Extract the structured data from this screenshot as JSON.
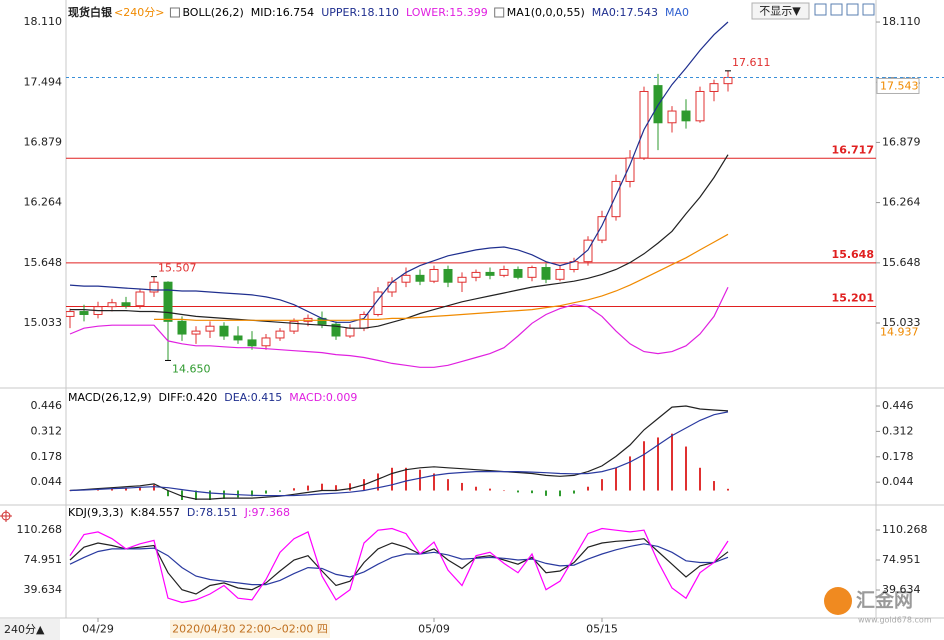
{
  "toolbar": {
    "hide_button": "不显示▼"
  },
  "cursor_label": "2020/04/30 22:00～02:00 四",
  "period_button": "240分▲",
  "watermark": {
    "name": "汇金网",
    "url": "www.gold678.com"
  },
  "chart_data": [
    {
      "type": "candlestick",
      "title": "现货白银",
      "subtitle": "<240分>",
      "indicator_labels": [
        {
          "text": "BOLL(26,2)",
          "color": "#000000",
          "checkbox": true
        },
        {
          "text": "MID:16.754",
          "color": "#000000"
        },
        {
          "text": "UPPER:18.110",
          "color": "#1f2f8f"
        },
        {
          "text": "LOWER:15.399",
          "color": "#e020e0"
        },
        {
          "text": "MA1(0,0,0,55)",
          "color": "#000000",
          "checkbox": true
        },
        {
          "text": "MA0:17.543",
          "color": "#1f2f8f"
        },
        {
          "text": "MA0",
          "color": "#3060d0"
        }
      ],
      "categories": [
        null,
        null,
        "04/29",
        null,
        null,
        null,
        null,
        null,
        null,
        null,
        null,
        null,
        null,
        null,
        null,
        null,
        null,
        null,
        null,
        null,
        null,
        null,
        null,
        null,
        null,
        null,
        "05/09",
        null,
        null,
        null,
        null,
        null,
        null,
        null,
        null,
        null,
        null,
        null,
        "05/15",
        null,
        null,
        null,
        null,
        null,
        null,
        null,
        null,
        null
      ],
      "ohlc": {
        "open": [
          15.1,
          15.15,
          15.12,
          15.2,
          15.24,
          15.21,
          15.35,
          15.45,
          15.05,
          14.92,
          14.95,
          15.0,
          14.9,
          14.86,
          14.8,
          14.88,
          14.95,
          15.05,
          15.08,
          15.02,
          14.9,
          14.98,
          15.12,
          15.35,
          15.45,
          15.52,
          15.46,
          15.58,
          15.45,
          15.5,
          15.55,
          15.52,
          15.58,
          15.5,
          15.6,
          15.48,
          15.58,
          15.66,
          15.88,
          16.12,
          16.48,
          16.72,
          17.46,
          17.08,
          17.2,
          17.1,
          17.4,
          17.48
        ],
        "high": [
          15.18,
          15.22,
          15.25,
          15.28,
          15.3,
          15.38,
          15.507,
          15.46,
          15.1,
          15.0,
          15.05,
          15.04,
          15.0,
          14.95,
          14.92,
          14.98,
          15.08,
          15.12,
          15.15,
          15.05,
          15.02,
          15.15,
          15.4,
          15.5,
          15.6,
          15.58,
          15.62,
          15.62,
          15.55,
          15.58,
          15.6,
          15.62,
          15.61,
          15.62,
          15.64,
          15.62,
          15.7,
          15.92,
          16.18,
          16.55,
          16.8,
          17.45,
          17.58,
          17.25,
          17.32,
          17.45,
          17.52,
          17.611
        ],
        "low": [
          14.98,
          15.05,
          15.08,
          15.15,
          15.18,
          15.18,
          15.3,
          14.65,
          14.85,
          14.82,
          14.88,
          14.86,
          14.82,
          14.76,
          14.76,
          14.85,
          14.92,
          15.0,
          14.98,
          14.86,
          14.88,
          14.95,
          15.1,
          15.3,
          15.4,
          15.42,
          15.44,
          15.4,
          15.35,
          15.46,
          15.48,
          15.5,
          15.48,
          15.46,
          15.44,
          15.46,
          15.55,
          15.62,
          15.85,
          16.08,
          16.42,
          16.7,
          16.8,
          16.98,
          17.02,
          17.08,
          17.3,
          17.4
        ],
        "close": [
          15.15,
          15.12,
          15.2,
          15.24,
          15.21,
          15.35,
          15.45,
          15.05,
          14.92,
          14.95,
          15.0,
          14.9,
          14.86,
          14.8,
          14.88,
          14.95,
          15.05,
          15.08,
          15.02,
          14.9,
          14.98,
          15.12,
          15.35,
          15.45,
          15.52,
          15.46,
          15.58,
          15.45,
          15.5,
          15.55,
          15.52,
          15.58,
          15.5,
          15.6,
          15.48,
          15.58,
          15.66,
          15.88,
          16.12,
          16.48,
          16.72,
          17.4,
          17.08,
          17.2,
          17.1,
          17.4,
          17.48,
          17.543
        ],
        "up_color": "#e03030",
        "down_color": "#2e9a2e"
      },
      "lines": [
        {
          "color": "#1f2f8f",
          "values": [
            15.42,
            15.41,
            15.41,
            15.4,
            15.39,
            15.38,
            15.37,
            15.37,
            15.36,
            15.36,
            15.35,
            15.34,
            15.33,
            15.32,
            15.3,
            15.27,
            15.22,
            15.15,
            15.08,
            15.04,
            15.04,
            15.08,
            15.27,
            15.45,
            15.55,
            15.62,
            15.67,
            15.72,
            15.75,
            15.78,
            15.8,
            15.81,
            15.78,
            15.73,
            15.66,
            15.62,
            15.66,
            15.78,
            16.03,
            16.34,
            16.65,
            17.01,
            17.26,
            17.47,
            17.64,
            17.82,
            17.98,
            18.11
          ]
        },
        {
          "color": "#222222",
          "values": [
            15.17,
            15.17,
            15.16,
            15.16,
            15.16,
            15.15,
            15.15,
            15.14,
            15.12,
            15.1,
            15.09,
            15.08,
            15.07,
            15.06,
            15.05,
            15.04,
            15.03,
            15.02,
            15.01,
            15.0,
            14.98,
            14.98,
            15.0,
            15.04,
            15.08,
            15.13,
            15.17,
            15.21,
            15.25,
            15.28,
            15.31,
            15.34,
            15.37,
            15.4,
            15.42,
            15.44,
            15.46,
            15.49,
            15.53,
            15.58,
            15.65,
            15.74,
            15.85,
            15.97,
            16.15,
            16.32,
            16.52,
            16.754
          ]
        },
        {
          "color": "#e020e0",
          "values": [
            14.92,
            14.98,
            15.0,
            15.01,
            15.01,
            15.01,
            15.01,
            14.85,
            14.82,
            14.8,
            14.8,
            14.79,
            14.78,
            14.78,
            14.77,
            14.76,
            14.75,
            14.74,
            14.73,
            14.71,
            14.7,
            14.68,
            14.65,
            14.62,
            14.6,
            14.58,
            14.58,
            14.6,
            14.64,
            14.68,
            14.72,
            14.78,
            14.9,
            15.03,
            15.12,
            15.18,
            15.22,
            15.2,
            15.1,
            14.95,
            14.82,
            14.74,
            14.72,
            14.74,
            14.8,
            14.92,
            15.1,
            15.399
          ]
        },
        {
          "color": "#f08a00",
          "values": [
            null,
            null,
            null,
            null,
            null,
            null,
            15.07,
            15.07,
            15.07,
            15.06,
            15.06,
            15.06,
            15.06,
            15.06,
            15.06,
            15.06,
            15.06,
            15.06,
            15.06,
            15.06,
            15.06,
            15.07,
            15.07,
            15.08,
            15.08,
            15.09,
            15.1,
            15.11,
            15.12,
            15.13,
            15.14,
            15.15,
            15.16,
            15.17,
            15.19,
            15.21,
            15.24,
            15.27,
            15.31,
            15.36,
            15.42,
            15.49,
            15.56,
            15.63,
            15.7,
            15.78,
            15.86,
            15.94
          ]
        }
      ],
      "levels": [
        16.717,
        15.648,
        15.201
      ],
      "level_color": "#e02020",
      "reference_line": 17.543,
      "reference_color": "#3a8fd8",
      "ma_tag": 14.937,
      "ma_tag_color": "#f08a00",
      "annotations": [
        17.611,
        15.507,
        {
          "value": 14.65,
          "label": "14.650"
        }
      ],
      "ylim": [
        14.399,
        18.233
      ],
      "yticks": [
        15.033,
        15.648,
        16.264,
        16.879,
        17.494,
        {
          "value": 18.11,
          "label": "18.110"
        }
      ],
      "grid": false
    },
    {
      "type": "macd",
      "indicator_labels": [
        {
          "text": "MACD(26,12,9)",
          "color": "#000000"
        },
        {
          "text": "DIFF:0.420",
          "color": "#000000"
        },
        {
          "text": "DEA:0.415",
          "color": "#1f2f8f"
        },
        {
          "text": "MACD:0.009",
          "color": "#e020e0"
        }
      ],
      "lines": [
        {
          "color": "#222222",
          "values": [
            0.0,
            0.005,
            0.01,
            0.015,
            0.02,
            0.025,
            0.035,
            0.0,
            -0.03,
            -0.045,
            -0.045,
            -0.04,
            -0.04,
            -0.04,
            -0.035,
            -0.03,
            -0.02,
            -0.01,
            0.0,
            0.0,
            0.01,
            0.03,
            0.06,
            0.09,
            0.11,
            0.12,
            0.125,
            0.12,
            0.115,
            0.11,
            0.105,
            0.1,
            0.095,
            0.09,
            0.08,
            0.075,
            0.08,
            0.1,
            0.13,
            0.18,
            0.24,
            0.32,
            0.38,
            0.44,
            0.446,
            0.43,
            0.425,
            0.42
          ]
        },
        {
          "color": "#2a3aa0",
          "values": [
            0.0,
            0.003,
            0.006,
            0.01,
            0.013,
            0.017,
            0.02,
            0.015,
            0.005,
            -0.005,
            -0.013,
            -0.018,
            -0.022,
            -0.025,
            -0.027,
            -0.027,
            -0.026,
            -0.023,
            -0.018,
            -0.014,
            -0.009,
            0.0,
            0.015,
            0.03,
            0.05,
            0.065,
            0.08,
            0.09,
            0.095,
            0.1,
            0.1,
            0.1,
            0.1,
            0.097,
            0.094,
            0.09,
            0.088,
            0.09,
            0.1,
            0.12,
            0.15,
            0.19,
            0.24,
            0.29,
            0.33,
            0.37,
            0.4,
            0.415
          ]
        }
      ],
      "histogram": {
        "up_color": "#e03030",
        "down_color": "#2e9a2e",
        "values": [
          0,
          0.004,
          0.008,
          0.01,
          0.014,
          0.016,
          0.03,
          -0.03,
          -0.07,
          -0.08,
          -0.064,
          -0.044,
          -0.036,
          -0.03,
          -0.016,
          -0.006,
          0.012,
          0.026,
          0.036,
          0.028,
          0.038,
          0.06,
          0.09,
          0.12,
          0.12,
          0.11,
          0.09,
          0.06,
          0.04,
          0.02,
          0.01,
          0.0,
          -0.01,
          -0.014,
          -0.028,
          -0.03,
          -0.016,
          0.02,
          0.06,
          0.12,
          0.18,
          0.26,
          0.28,
          0.3,
          0.232,
          0.12,
          0.05,
          0.009
        ]
      },
      "ylim": [
        -0.05,
        0.504
      ],
      "yticks": [
        0.044,
        0.178,
        0.312,
        0.446
      ],
      "grid": false
    },
    {
      "type": "line",
      "indicator_labels": [
        {
          "text": "KDJ(9,3,3)",
          "color": "#000000"
        },
        {
          "text": "K:84.557",
          "color": "#000000"
        },
        {
          "text": "D:78.151",
          "color": "#1f2f8f"
        },
        {
          "text": "J:97.368",
          "color": "#e020e0"
        }
      ],
      "lines": [
        {
          "color": "#222222",
          "values": [
            75,
            90,
            95,
            92,
            88,
            90,
            92,
            60,
            40,
            35,
            45,
            48,
            42,
            40,
            48,
            62,
            75,
            80,
            62,
            45,
            50,
            72,
            88,
            95,
            90,
            82,
            88,
            75,
            65,
            78,
            80,
            75,
            70,
            78,
            60,
            62,
            72,
            90,
            95,
            97,
            98,
            100,
            85,
            70,
            55,
            68,
            72,
            84.557
          ]
        },
        {
          "color": "#2a3aa0",
          "values": [
            70,
            78,
            85,
            88,
            88,
            88,
            89,
            80,
            66,
            56,
            52,
            50,
            48,
            46,
            46,
            51,
            59,
            66,
            65,
            58,
            55,
            61,
            70,
            78,
            82,
            82,
            84,
            81,
            76,
            77,
            78,
            77,
            75,
            76,
            71,
            68,
            69,
            76,
            82,
            87,
            91,
            94,
            91,
            84,
            74,
            72,
            72,
            78.151
          ]
        },
        {
          "color": "#ff00ff",
          "values": [
            80,
            105,
            108,
            100,
            88,
            94,
            98,
            30,
            25,
            28,
            35,
            45,
            30,
            28,
            52,
            84,
            100,
            108,
            56,
            28,
            40,
            95,
            110,
            112,
            106,
            82,
            96,
            63,
            45,
            80,
            84,
            71,
            60,
            82,
            40,
            50,
            78,
            106,
            112,
            110,
            108,
            110,
            73,
            42,
            30,
            60,
            72,
            97.368
          ]
        }
      ],
      "ylim": [
        22,
        133.8
      ],
      "yticks": [
        39.634,
        74.951,
        110.268
      ],
      "grid": false
    }
  ]
}
